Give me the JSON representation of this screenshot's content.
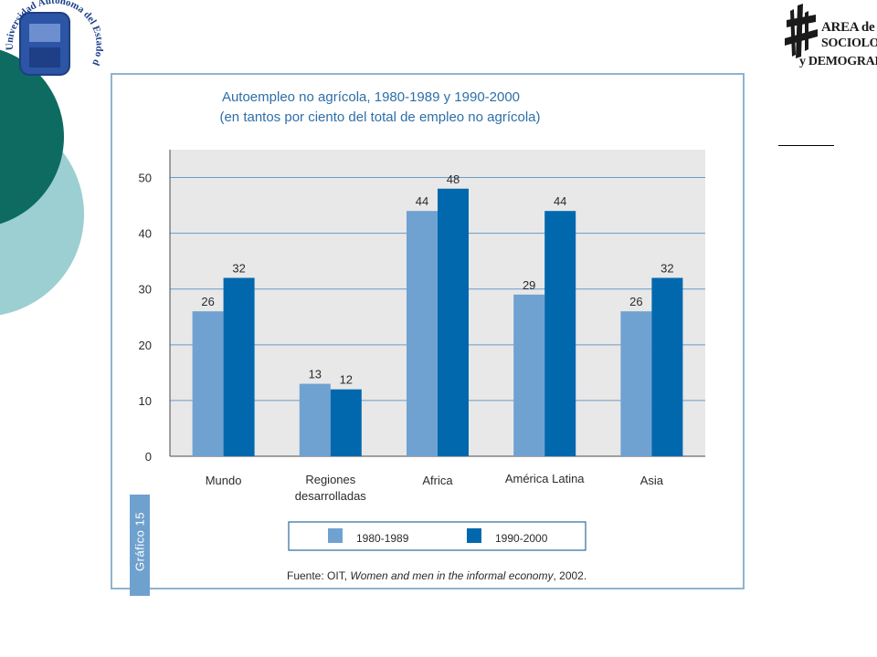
{
  "university_seal": {
    "text": "Universidad Autónoma del Estado de Hidalgo"
  },
  "area_logo": {
    "line1": "AREA de",
    "line2": "SOCIOLOGÍA",
    "line3": "y DEMOGRAFÍA"
  },
  "colors": {
    "dark_teal": "#0d6b62",
    "light_teal": "#9ccfd1",
    "series_1980": "#6fa2d1",
    "series_1990": "#0268ae",
    "plot_bg": "#e8e8e8",
    "frame": "#8fb3d1"
  },
  "chart_data": {
    "type": "bar",
    "title": "Autoempleo no agrícola, 1980-1989 y 1990-2000",
    "subtitle": "(en tantos por ciento del total de empleo no agrícola)",
    "categories": [
      "Mundo",
      "Regiones desarrolladas",
      "Africa",
      "América Latina",
      "Asia"
    ],
    "series": [
      {
        "name": "1980-1989",
        "values": [
          26,
          13,
          44,
          29,
          26
        ],
        "color": "#6fa2d1"
      },
      {
        "name": "1990-2000",
        "values": [
          32,
          12,
          48,
          44,
          32
        ],
        "color": "#0268ae"
      }
    ],
    "ylim": [
      0,
      55
    ],
    "yticks": [
      0,
      10,
      20,
      30,
      40,
      50
    ],
    "grid": true,
    "legend": "bottom",
    "side_label": "Gráfico 15",
    "source_prefix": "Fuente: OIT, ",
    "source_title": "Women and men in the informal economy",
    "source_suffix": ", 2002."
  }
}
